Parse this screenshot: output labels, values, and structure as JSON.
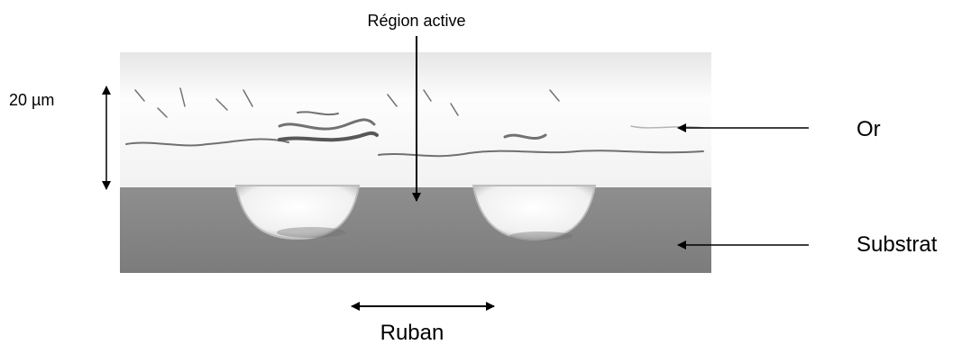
{
  "labels": {
    "active_region": "Région active",
    "thickness": "20 µm",
    "gold": "Or",
    "substrate": "Substrat",
    "ribbon": "Ruban"
  },
  "colors": {
    "gold_layer": "#f2f2f2",
    "substrate": "#8a8a8a",
    "ribbon_core": "#fafafa",
    "arrow": "#000000"
  }
}
